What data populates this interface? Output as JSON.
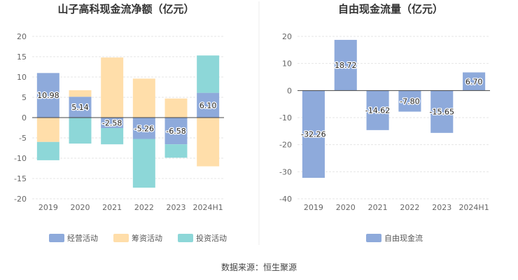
{
  "colors": {
    "operating": "#8eaadb",
    "financing": "#ffdeaa",
    "investing": "#8dd7d8",
    "fcf": "#8eaadb",
    "grid": "#e6e6e6",
    "axis": "#444444"
  },
  "source_text": "数据来源：恒生聚源",
  "chart_data": [
    {
      "type": "bar",
      "stacked": true,
      "title": "山子高科现金流净额（亿元）",
      "categories": [
        "2019",
        "2020",
        "2021",
        "2022",
        "2023",
        "2024H1"
      ],
      "ylim": [
        -20,
        20
      ],
      "yticks": [
        20,
        15,
        10,
        5,
        0,
        -5,
        -10,
        -15,
        -20
      ],
      "legend_position": "bottom",
      "grid": true,
      "series": [
        {
          "name": "经营活动",
          "color_key": "operating",
          "values": [
            10.98,
            5.14,
            -2.58,
            -5.26,
            -6.58,
            6.1
          ],
          "labels": [
            "10.98",
            "5.14",
            "-2.58",
            "-5.26",
            "-6.58",
            "6.10"
          ]
        },
        {
          "name": "筹资活动",
          "color_key": "financing",
          "values": [
            -6.0,
            1.6,
            14.8,
            9.6,
            4.7,
            -12.0
          ]
        },
        {
          "name": "投资活动",
          "color_key": "investing",
          "values": [
            -4.5,
            -6.4,
            -4.0,
            -12.0,
            -3.3,
            9.2
          ]
        }
      ]
    },
    {
      "type": "bar",
      "title": "自由现金流量（亿元）",
      "categories": [
        "2019",
        "2020",
        "2021",
        "2022",
        "2023",
        "2024H1"
      ],
      "ylim": [
        -40,
        20
      ],
      "yticks": [
        20,
        10,
        0,
        -10,
        -20,
        -30,
        -40
      ],
      "legend_position": "bottom",
      "grid": true,
      "series": [
        {
          "name": "自由现金流",
          "color_key": "fcf",
          "values": [
            -32.26,
            18.72,
            -14.62,
            -7.8,
            -15.65,
            6.7
          ],
          "labels": [
            "-32.26",
            "18.72",
            "-14.62",
            "-7.80",
            "-15.65",
            "6.70"
          ]
        }
      ]
    }
  ]
}
